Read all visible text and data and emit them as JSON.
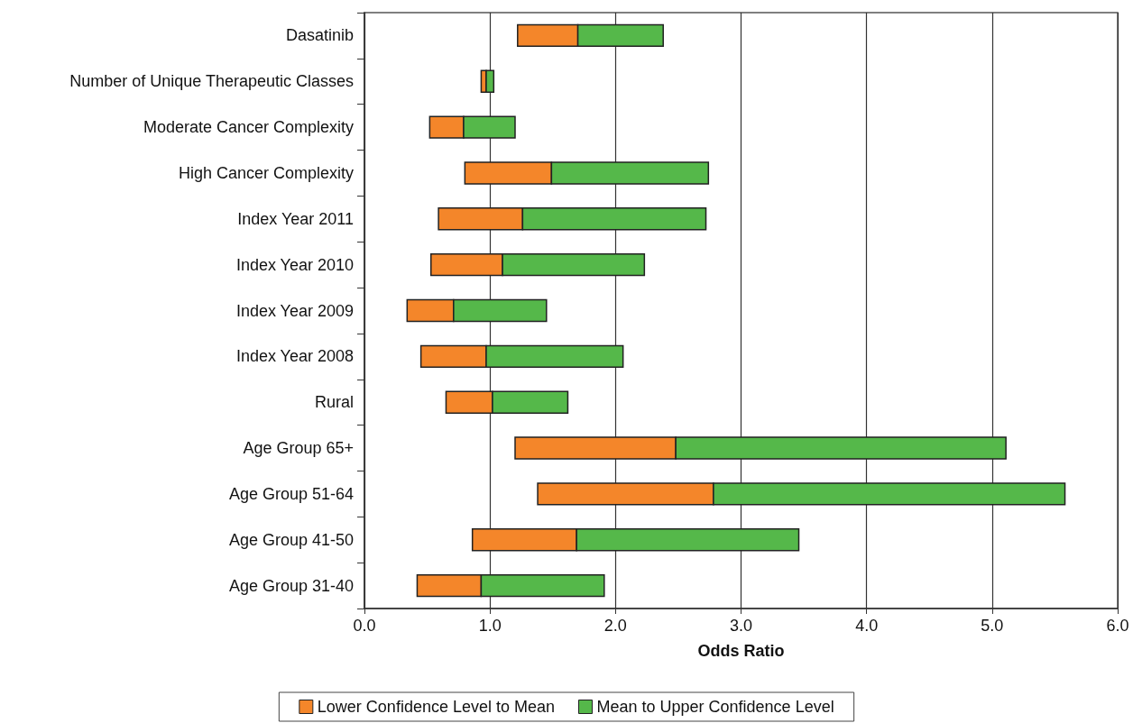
{
  "chart_data": {
    "type": "bar",
    "orientation": "horizontal",
    "xlabel": "Odds Ratio",
    "categories": [
      "Dasatinib",
      "Number of Unique Therapeutic Classes",
      "Moderate Cancer Complexity",
      "High Cancer Complexity",
      "Index Year 2011",
      "Index Year 2010",
      "Index Year 2009",
      "Index Year 2008",
      "Rural",
      "Age Group 65+",
      "Age Group 51-64",
      "Age Group 41-50",
      "Age Group 31-40"
    ],
    "series": [
      {
        "name": "Lower Confidence Level to Mean",
        "color": "#f4862a",
        "base": [
          1.22,
          0.93,
          0.52,
          0.8,
          0.59,
          0.53,
          0.34,
          0.45,
          0.65,
          1.2,
          1.38,
          0.86,
          0.42
        ],
        "values": [
          0.48,
          0.04,
          0.27,
          0.69,
          0.67,
          0.57,
          0.37,
          0.52,
          0.37,
          1.28,
          1.4,
          0.83,
          0.51
        ]
      },
      {
        "name": "Mean to Upper Confidence Level",
        "color": "#55b84a",
        "base": [
          1.7,
          0.97,
          0.79,
          1.49,
          1.26,
          1.1,
          0.71,
          0.97,
          1.02,
          2.48,
          2.78,
          1.69,
          0.93
        ],
        "values": [
          0.68,
          0.06,
          0.41,
          1.25,
          1.46,
          1.13,
          0.74,
          1.09,
          0.6,
          2.63,
          2.8,
          1.77,
          0.98
        ]
      }
    ],
    "xlim": [
      0,
      6
    ],
    "xticks": [
      {
        "value": 0,
        "label": "0.0"
      },
      {
        "value": 1,
        "label": "1.0"
      },
      {
        "value": 2,
        "label": "2.0"
      },
      {
        "value": 3,
        "label": "3.0"
      },
      {
        "value": 4,
        "label": "4.0"
      },
      {
        "value": 5,
        "label": "5.0"
      },
      {
        "value": 6,
        "label": "6.0"
      }
    ],
    "grid": "x",
    "legend": "bottom"
  }
}
